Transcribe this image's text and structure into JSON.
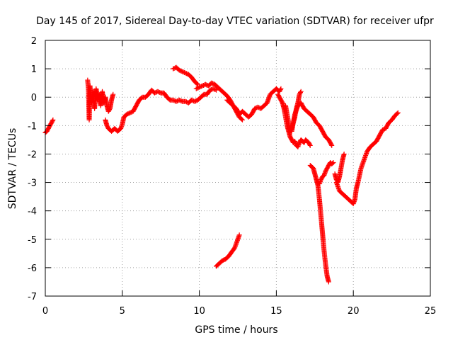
{
  "chart_data": {
    "type": "scatter",
    "title": "Day 145 of 2017, Sidereal Day-to-day VTEC variation (SDTVAR) for receiver ufpr",
    "xlabel": "GPS time / hours",
    "ylabel": "SDTVAR / TECUs",
    "xlim": [
      0,
      25
    ],
    "ylim": [
      -7,
      2
    ],
    "x_ticks": [
      0,
      5,
      10,
      15,
      20,
      25
    ],
    "y_ticks": [
      -7,
      -6,
      -5,
      -4,
      -3,
      -2,
      -1,
      0,
      1,
      2
    ],
    "grid": true,
    "marker": "+",
    "colors": {
      "series": "#ff0000",
      "grid": "#a0a0a0",
      "axis": "#000000"
    },
    "series": [
      {
        "segments": [
          {
            "x": [
              0.0,
              0.1,
              0.2,
              0.3,
              0.4,
              0.5
            ],
            "y": [
              -1.25,
              -1.2,
              -1.1,
              -1.0,
              -0.9,
              -0.8
            ]
          },
          {
            "x": [
              2.75,
              2.8,
              2.85,
              2.9,
              3.0,
              3.1,
              3.2,
              3.3,
              3.4,
              3.5,
              3.6,
              3.7,
              3.8,
              3.9,
              4.0,
              4.1,
              4.2,
              4.3,
              4.4
            ],
            "y": [
              0.6,
              0.3,
              -0.8,
              0.4,
              -0.2,
              0.2,
              -0.4,
              0.3,
              -0.1,
              0.1,
              -0.3,
              0.2,
              -0.2,
              0.0,
              -0.3,
              -0.5,
              -0.4,
              -0.1,
              0.1
            ]
          },
          {
            "x": [
              3.9,
              4.0,
              4.1,
              4.2,
              4.3,
              4.5,
              4.7,
              4.9,
              5.0,
              5.1,
              5.3,
              5.5,
              5.7,
              5.9,
              6.1,
              6.3,
              6.5,
              6.7,
              6.9,
              7.1,
              7.3,
              7.5,
              7.7,
              7.9,
              8.1,
              8.3,
              8.5,
              8.7,
              8.9,
              9.1,
              9.3,
              9.5,
              9.7,
              9.9,
              10.1,
              10.3,
              10.5,
              10.7,
              10.9,
              11.1
            ],
            "y": [
              -0.8,
              -1.0,
              -1.1,
              -1.15,
              -1.2,
              -1.1,
              -1.2,
              -1.1,
              -0.95,
              -0.7,
              -0.6,
              -0.55,
              -0.5,
              -0.3,
              -0.1,
              0.0,
              0.0,
              0.1,
              0.25,
              0.15,
              0.2,
              0.15,
              0.15,
              0.0,
              -0.1,
              -0.1,
              -0.15,
              -0.1,
              -0.15,
              -0.15,
              -0.2,
              -0.1,
              -0.15,
              -0.1,
              0.0,
              0.1,
              0.1,
              0.25,
              0.3,
              0.25
            ]
          },
          {
            "x": [
              8.3,
              8.5,
              8.7,
              8.9,
              9.1,
              9.3,
              9.5,
              9.7,
              9.9
            ],
            "y": [
              1.0,
              1.05,
              0.95,
              0.9,
              0.85,
              0.8,
              0.7,
              0.55,
              0.45
            ]
          },
          {
            "x": [
              9.8,
              10.0,
              10.2,
              10.4,
              10.6,
              10.8,
              11.0,
              11.2,
              11.4,
              11.6,
              11.8,
              12.0,
              12.2,
              12.4,
              12.6,
              12.8
            ],
            "y": [
              0.3,
              0.35,
              0.4,
              0.45,
              0.4,
              0.5,
              0.45,
              0.35,
              0.25,
              0.15,
              0.05,
              -0.1,
              -0.3,
              -0.5,
              -0.7,
              -0.8
            ]
          },
          {
            "x": [
              11.8,
              12.0,
              12.2,
              12.4,
              12.6,
              12.8,
              13.0,
              13.2,
              13.4,
              13.6,
              13.8,
              14.0,
              14.2,
              14.4,
              14.6,
              14.8,
              15.0,
              15.1,
              15.2,
              15.3
            ],
            "y": [
              -0.1,
              -0.2,
              -0.3,
              -0.4,
              -0.6,
              -0.5,
              -0.6,
              -0.7,
              -0.6,
              -0.4,
              -0.35,
              -0.4,
              -0.3,
              -0.2,
              0.1,
              0.2,
              0.3,
              0.25,
              0.2,
              0.3
            ]
          },
          {
            "x": [
              11.1,
              11.3,
              11.5,
              11.7,
              11.9,
              12.1,
              12.3,
              12.4,
              12.5,
              12.6
            ],
            "y": [
              -5.95,
              -5.85,
              -5.75,
              -5.7,
              -5.6,
              -5.45,
              -5.3,
              -5.15,
              -5.0,
              -4.85
            ]
          },
          {
            "x": [
              15.1,
              15.2,
              15.3,
              15.4,
              15.5,
              15.6,
              15.7,
              15.8,
              15.9,
              16.0,
              16.1,
              16.2,
              16.3,
              16.4,
              16.5,
              16.6,
              16.7,
              16.8,
              16.9,
              17.0,
              17.1,
              17.2
            ],
            "y": [
              0.1,
              0.0,
              -0.1,
              -0.2,
              -0.4,
              -0.7,
              -1.0,
              -1.2,
              -1.4,
              -1.5,
              -1.6,
              -1.55,
              -1.7,
              -1.75,
              -1.6,
              -1.5,
              -1.55,
              -1.6,
              -1.5,
              -1.55,
              -1.6,
              -1.7
            ]
          },
          {
            "x": [
              15.6,
              15.7,
              15.8,
              15.9,
              16.0,
              16.1,
              16.2,
              16.3,
              16.4,
              16.5,
              16.6
            ],
            "y": [
              -0.3,
              -0.6,
              -0.9,
              -1.2,
              -1.1,
              -0.9,
              -0.7,
              -0.4,
              -0.2,
              0.1,
              0.2
            ]
          },
          {
            "x": [
              16.0,
              16.2,
              16.4,
              16.6,
              16.8,
              17.0,
              17.2,
              17.4,
              17.6,
              17.8,
              18.0,
              18.2,
              18.4,
              18.6
            ],
            "y": [
              -1.2,
              -0.6,
              -0.3,
              -0.2,
              -0.4,
              -0.5,
              -0.6,
              -0.7,
              -0.9,
              -1.0,
              -1.2,
              -1.4,
              -1.5,
              -1.7
            ]
          },
          {
            "x": [
              17.2,
              17.4,
              17.5,
              17.6,
              17.7,
              17.8,
              17.9,
              18.0,
              18.1,
              18.2,
              18.3,
              18.4
            ],
            "y": [
              -2.4,
              -2.5,
              -2.7,
              -2.9,
              -3.1,
              -3.6,
              -4.2,
              -4.8,
              -5.4,
              -5.9,
              -6.3,
              -6.5
            ]
          },
          {
            "x": [
              17.7,
              17.8,
              17.9,
              18.0,
              18.1,
              18.2,
              18.3,
              18.4,
              18.5,
              18.6,
              18.7
            ],
            "y": [
              -3.0,
              -3.05,
              -2.9,
              -2.8,
              -2.75,
              -2.6,
              -2.5,
              -2.4,
              -2.3,
              -2.35,
              -2.3
            ]
          },
          {
            "x": [
              18.8,
              18.9,
              19.0,
              19.1,
              19.2,
              19.3,
              19.4
            ],
            "y": [
              -2.7,
              -2.9,
              -3.0,
              -2.8,
              -2.5,
              -2.2,
              -2.0
            ]
          },
          {
            "x": [
              18.9,
              19.1,
              19.3,
              19.5,
              19.7,
              19.9,
              20.0,
              20.1,
              20.2,
              20.3,
              20.5,
              20.7,
              20.9,
              21.1,
              21.3,
              21.5,
              21.7,
              21.9,
              22.1,
              22.3,
              22.5,
              22.7,
              22.9
            ],
            "y": [
              -3.0,
              -3.3,
              -3.4,
              -3.5,
              -3.6,
              -3.7,
              -3.75,
              -3.6,
              -3.2,
              -3.0,
              -2.5,
              -2.2,
              -1.9,
              -1.75,
              -1.65,
              -1.55,
              -1.35,
              -1.15,
              -1.1,
              -0.9,
              -0.8,
              -0.65,
              -0.55
            ]
          }
        ]
      }
    ]
  }
}
